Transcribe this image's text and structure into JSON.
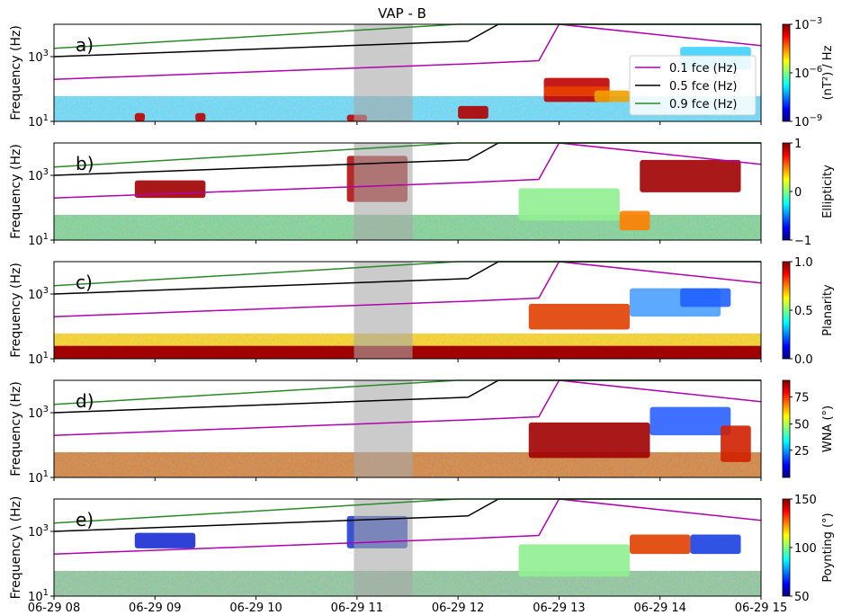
{
  "figure": {
    "title": "VAP - B",
    "x_tick_labels": [
      "06-29 08",
      "06-29 09",
      "06-29 10",
      "06-29 11",
      "06-29 12",
      "06-29 13",
      "06-29 14",
      "06-29 15"
    ],
    "legend": [
      "0.1 fce (Hz)",
      "0.5 fce (Hz)",
      "0.9 fce (Hz)"
    ],
    "line_colors": {
      "fce_0_1": "#b000b0",
      "fce_0_5": "#000000",
      "fce_0_9": "#2a8a2a"
    },
    "highlight_color": "#a8a8a8"
  },
  "panels": [
    {
      "label": "a)",
      "ylabel": "Frequency (Hz)",
      "yticks": [
        "10",
        "10",
        "10"
      ],
      "ytick_exps": [
        "1",
        "3",
        ""
      ],
      "cb_label": "(nT²) / Hz",
      "cb_ticks": [
        "10",
        "10",
        "10"
      ],
      "cb_tick_exps": [
        "−9",
        "−6",
        "−3"
      ],
      "colormap": "jet"
    },
    {
      "label": "b)",
      "ylabel": "Frequency (Hz)",
      "yticks": [
        "10",
        "10"
      ],
      "ytick_exps": [
        "1",
        "3"
      ],
      "cb_label": "Ellipticity",
      "cb_ticks": [
        "−1",
        "0",
        "1"
      ],
      "colormap": "jet"
    },
    {
      "label": "c)",
      "ylabel": "Frequency (Hz)",
      "yticks": [
        "10",
        "10"
      ],
      "ytick_exps": [
        "1",
        "3"
      ],
      "cb_label": "Planarity",
      "cb_ticks": [
        "0.0",
        "0.5",
        "1.0"
      ],
      "colormap": "jet"
    },
    {
      "label": "d)",
      "ylabel": "Frequency (Hz)",
      "yticks": [
        "10",
        "10"
      ],
      "ytick_exps": [
        "1",
        "3"
      ],
      "cb_label": "WNA (°)",
      "cb_ticks": [
        "25",
        "50",
        "75"
      ],
      "colormap": "jet"
    },
    {
      "label": "e)",
      "ylabel": "Frequency \\ (Hz)",
      "yticks": [
        "10",
        "10"
      ],
      "ytick_exps": [
        "1",
        "3"
      ],
      "cb_label": "Poynting (°)",
      "cb_ticks": [
        "50",
        "100",
        "150"
      ],
      "colormap": "jet"
    }
  ],
  "chart_data": {
    "type": "heatmap",
    "title": "VAP - B",
    "x": [
      "06-29 08",
      "06-29 09",
      "06-29 10",
      "06-29 11",
      "06-29 12",
      "06-29 13",
      "06-29 14",
      "06-29 15"
    ],
    "x_hours": [
      8,
      15
    ],
    "y_scale": "log",
    "ylim_hz": [
      10,
      10000
    ],
    "highlight_interval_hours": [
      10.97,
      11.55
    ],
    "series": [
      {
        "name": "0.1 fce (Hz)",
        "x_hours": [
          8,
          12.1,
          12.8,
          13.0,
          15
        ],
        "y_hz": [
          200,
          600,
          750,
          10000,
          2200
        ]
      },
      {
        "name": "0.5 fce (Hz)",
        "x_hours": [
          8,
          12.1,
          12.4,
          15
        ],
        "y_hz": [
          1000,
          3000,
          10000,
          10000
        ]
      },
      {
        "name": "0.9 fce (Hz)",
        "x_hours": [
          8,
          12.0,
          15
        ],
        "y_hz": [
          1800,
          10000,
          10000
        ]
      }
    ],
    "colorbars": [
      {
        "label": "(nT²) / Hz",
        "scale": "log",
        "range": [
          1e-09,
          0.001
        ]
      },
      {
        "label": "Ellipticity",
        "range": [
          -1,
          1
        ]
      },
      {
        "label": "Planarity",
        "range": [
          0,
          1
        ]
      },
      {
        "label": "WNA (°)",
        "range": [
          0,
          90
        ]
      },
      {
        "label": "Poynting (°)",
        "range": [
          0,
          180
        ]
      }
    ]
  }
}
